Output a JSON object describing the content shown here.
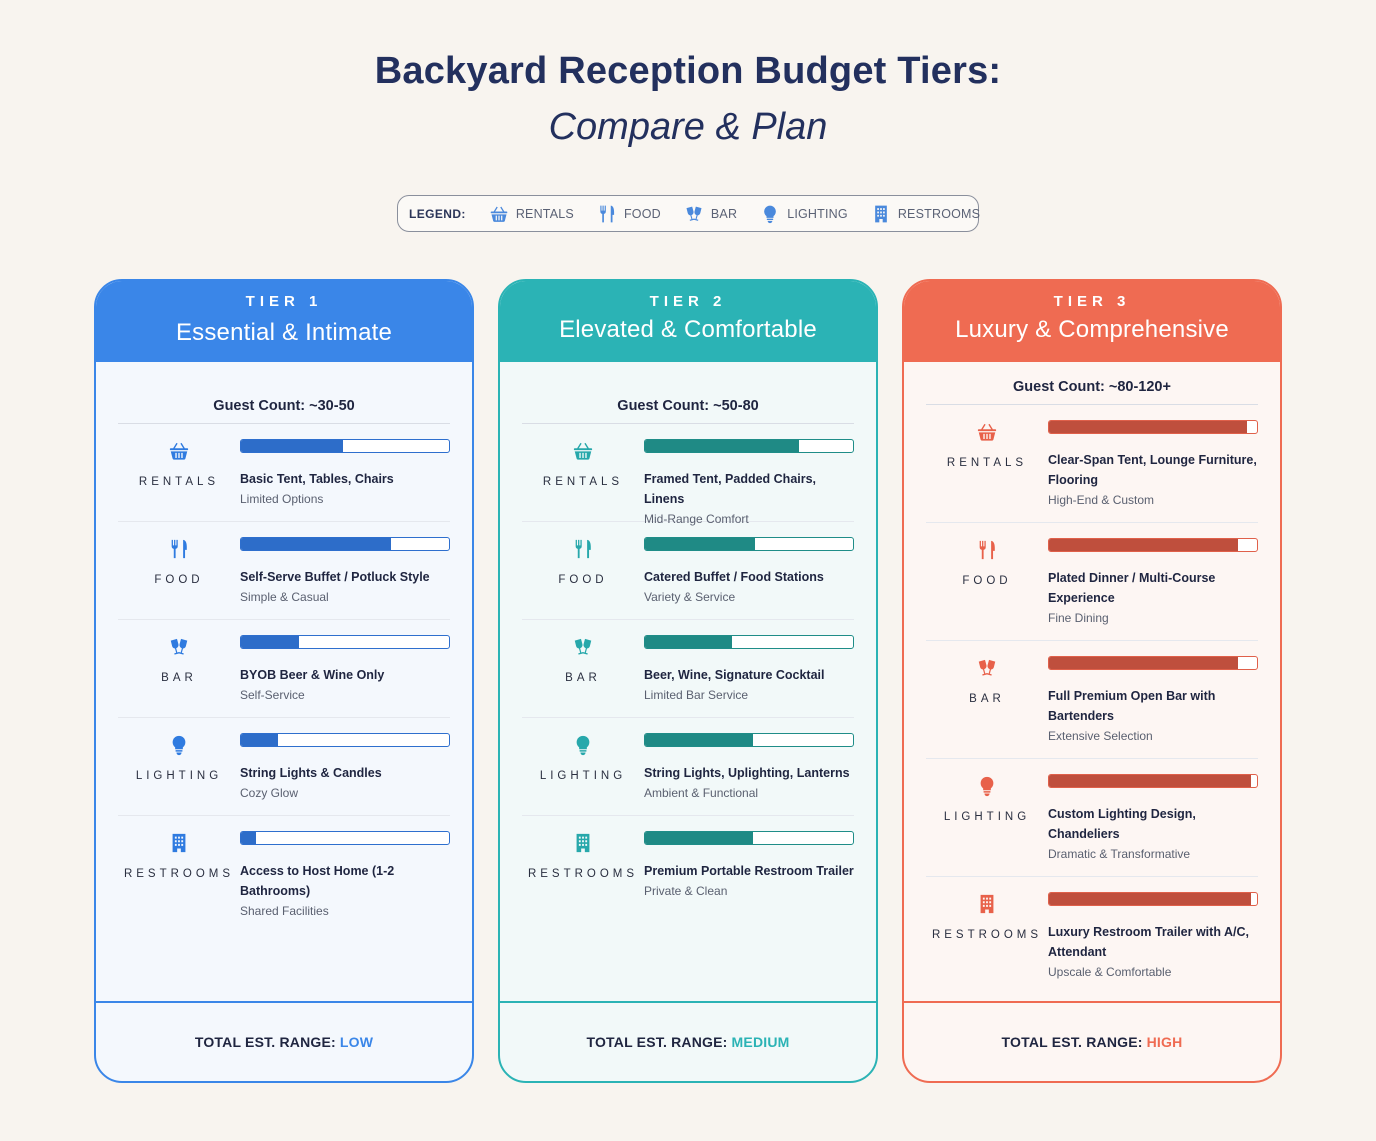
{
  "title_line1": "Backyard Reception Budget Tiers:",
  "title_line2": "Compare & Plan",
  "legend": {
    "label": "LEGEND:",
    "items": [
      {
        "icon": "basket-icon",
        "label": "RENTALS"
      },
      {
        "icon": "utensils-icon",
        "label": "FOOD"
      },
      {
        "icon": "cocktail-glasses-icon",
        "label": "BAR"
      },
      {
        "icon": "lightbulb-icon",
        "label": "LIGHTING"
      },
      {
        "icon": "building-icon",
        "label": "RESTROOMS"
      }
    ]
  },
  "colors": {
    "tier1": "#3a86e8",
    "tier2": "#2bb3b5",
    "tier3": "#ef6b52",
    "background": "#f8f4ef"
  },
  "tiers": [
    {
      "kicker": "TIER 1",
      "name": "Essential & Intimate",
      "guest_count": "Guest Count: ~30-50",
      "total_label": "TOTAL EST. RANGE:",
      "total_value": "LOW",
      "rows": [
        {
          "category": "RENTALS",
          "icon": "basket-icon",
          "level": 0.49,
          "item": "Basic Tent, Tables, Chairs",
          "note": "Limited Options"
        },
        {
          "category": "FOOD",
          "icon": "utensils-icon",
          "level": 0.72,
          "item": "Self-Serve Buffet / Potluck Style",
          "note": "Simple & Casual"
        },
        {
          "category": "BAR",
          "icon": "cocktail-glasses-icon",
          "level": 0.28,
          "item": "BYOB Beer & Wine Only",
          "note": "Self-Service"
        },
        {
          "category": "LIGHTING",
          "icon": "lightbulb-icon",
          "level": 0.18,
          "item": "String Lights & Candles",
          "note": "Cozy Glow"
        },
        {
          "category": "RESTROOMS",
          "icon": "building-icon",
          "level": 0.07,
          "item": "Access to Host Home (1-2 Bathrooms)",
          "note": "Shared Facilities"
        }
      ]
    },
    {
      "kicker": "TIER 2",
      "name": "Elevated & Comfortable",
      "guest_count": "Guest Count: ~50-80",
      "total_label": "TOTAL EST. RANGE:",
      "total_value": "MEDIUM",
      "rows": [
        {
          "category": "RENTALS",
          "icon": "basket-icon",
          "level": 0.74,
          "item": "Framed Tent, Padded Chairs, Linens",
          "note": "Mid-Range Comfort"
        },
        {
          "category": "FOOD",
          "icon": "utensils-icon",
          "level": 0.53,
          "item": "Catered Buffet / Food Stations",
          "note": "Variety & Service"
        },
        {
          "category": "BAR",
          "icon": "cocktail-glasses-icon",
          "level": 0.42,
          "item": "Beer, Wine, Signature Cocktail",
          "note": "Limited Bar Service"
        },
        {
          "category": "LIGHTING",
          "icon": "lightbulb-icon",
          "level": 0.52,
          "item": "String Lights, Uplighting, Lanterns",
          "note": "Ambient & Functional"
        },
        {
          "category": "RESTROOMS",
          "icon": "building-icon",
          "level": 0.52,
          "item": "Premium Portable Restroom Trailer",
          "note": "Private & Clean"
        }
      ]
    },
    {
      "kicker": "TIER 3",
      "name": "Luxury & Comprehensive",
      "guest_count": "Guest Count: ~80-120+",
      "total_label": "TOTAL EST. RANGE:",
      "total_value": "HIGH",
      "rows": [
        {
          "category": "RENTALS",
          "icon": "basket-icon",
          "level": 0.95,
          "item": "Clear-Span Tent, Lounge Furniture, Flooring",
          "note": "High-End & Custom"
        },
        {
          "category": "FOOD",
          "icon": "utensils-icon",
          "level": 0.91,
          "item": "Plated Dinner / Multi-Course Experience",
          "note": "Fine Dining"
        },
        {
          "category": "BAR",
          "icon": "cocktail-glasses-icon",
          "level": 0.91,
          "item": "Full Premium Open Bar with Bartenders",
          "note": "Extensive Selection"
        },
        {
          "category": "LIGHTING",
          "icon": "lightbulb-icon",
          "level": 0.97,
          "item": "Custom Lighting Design, Chandeliers",
          "note": "Dramatic & Transformative"
        },
        {
          "category": "RESTROOMS",
          "icon": "building-icon",
          "level": 0.97,
          "item": "Luxury Restroom Trailer with A/C, Attendant",
          "note": "Upscale & Comfortable"
        }
      ]
    }
  ]
}
